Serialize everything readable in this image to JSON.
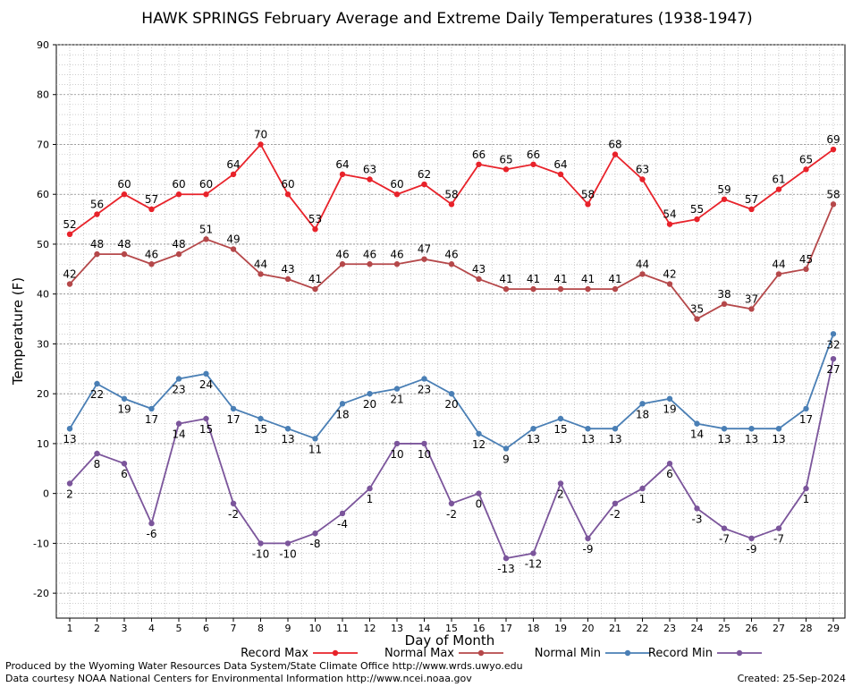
{
  "chart_data": {
    "type": "line",
    "title": "HAWK SPRINGS February Average and Extreme Daily Temperatures (1938-1947)",
    "xlabel": "Day of Month",
    "ylabel": "Temperature (F)",
    "ylim": [
      -25,
      90
    ],
    "yticks": [
      -20,
      -10,
      0,
      10,
      20,
      30,
      40,
      50,
      60,
      70,
      80,
      90
    ],
    "x": [
      1,
      2,
      3,
      4,
      5,
      6,
      7,
      8,
      9,
      10,
      11,
      12,
      13,
      14,
      15,
      16,
      17,
      18,
      19,
      20,
      21,
      22,
      23,
      24,
      25,
      26,
      27,
      28,
      29
    ],
    "grid": true,
    "legend": "bottom",
    "series": [
      {
        "name": "Record Max",
        "color": "#e8222a",
        "label_pos": "above",
        "values": [
          52,
          56,
          60,
          57,
          60,
          60,
          64,
          70,
          60,
          53,
          64,
          63,
          60,
          62,
          58,
          66,
          65,
          66,
          64,
          58,
          68,
          63,
          54,
          55,
          59,
          57,
          61,
          65,
          69
        ]
      },
      {
        "name": "Normal Max",
        "color": "#b5484a",
        "label_pos": "above",
        "values": [
          42,
          48,
          48,
          46,
          48,
          51,
          49,
          44,
          43,
          41,
          46,
          46,
          46,
          47,
          46,
          43,
          41,
          41,
          41,
          41,
          41,
          44,
          42,
          35,
          38,
          37,
          44,
          45,
          58
        ]
      },
      {
        "name": "Normal Min",
        "color": "#4a7fb5",
        "label_pos": "below",
        "values": [
          13,
          22,
          19,
          17,
          23,
          24,
          17,
          15,
          13,
          11,
          18,
          20,
          21,
          23,
          20,
          12,
          9,
          13,
          15,
          13,
          13,
          18,
          19,
          14,
          13,
          13,
          13,
          17,
          32
        ]
      },
      {
        "name": "Record Min",
        "color": "#7b559b",
        "label_pos": "below",
        "values": [
          2,
          8,
          6,
          -6,
          14,
          15,
          -2,
          -10,
          -10,
          -8,
          -4,
          1,
          10,
          10,
          -2,
          0,
          -13,
          -12,
          2,
          -9,
          -2,
          1,
          6,
          -3,
          -7,
          -9,
          -7,
          1,
          27
        ]
      }
    ]
  },
  "footer": {
    "produced_by": "Produced by the Wyoming Water Resources Data System/State Climate Office http://www.wrds.uwyo.edu",
    "courtesy": "Data courtesy NOAA National Centers for Environmental Information http://www.ncei.noaa.gov",
    "created": "Created: 25-Sep-2024"
  }
}
